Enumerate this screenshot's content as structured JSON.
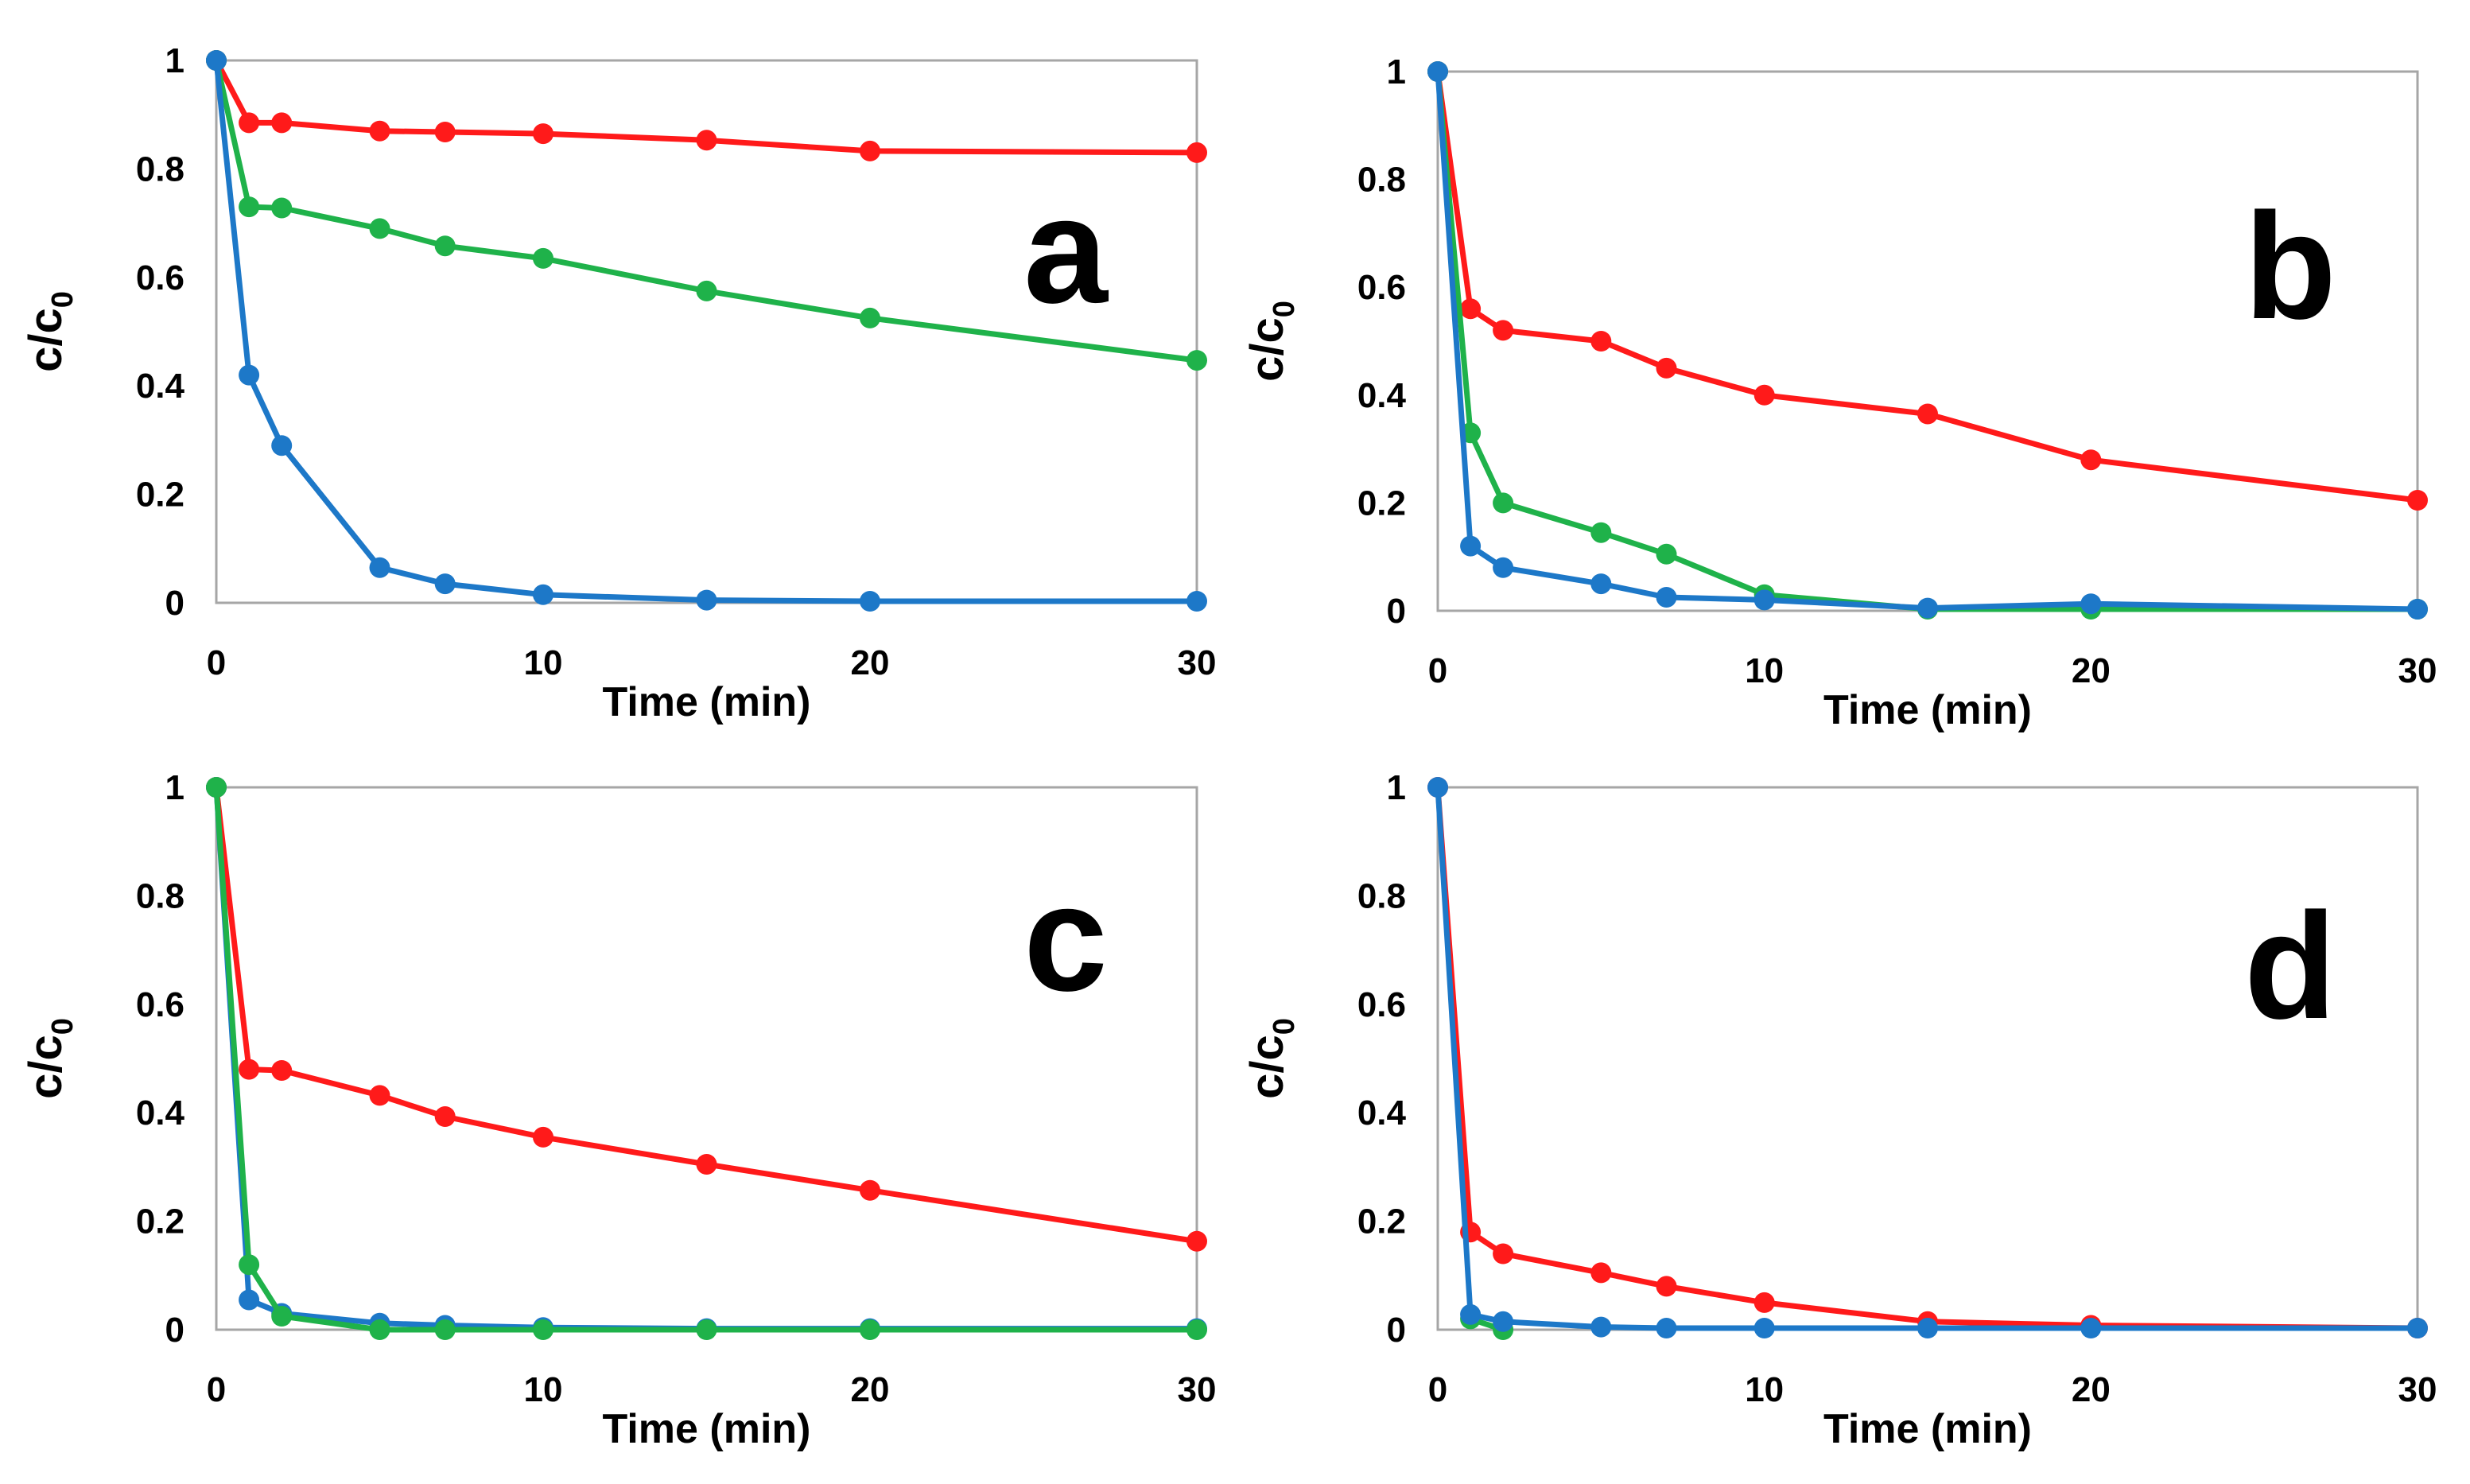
{
  "colors": {
    "red": "#ff1a1a",
    "green": "#1fb24a",
    "blue": "#1d78c8"
  },
  "chart_data": [
    {
      "type": "line",
      "panel_label": "a",
      "xlabel": "Time (min)",
      "ylabel_main": "c/c",
      "ylabel_sub": "0",
      "x": [
        0,
        1,
        2,
        5,
        7,
        10,
        15,
        20,
        30
      ],
      "xlim": [
        0,
        30
      ],
      "ylim": [
        0,
        1
      ],
      "xticks": [
        "0",
        "10",
        "20",
        "30"
      ],
      "yticks": [
        "0",
        "0.2",
        "0.4",
        "0.6",
        "0.8",
        "1"
      ],
      "grid": false,
      "series": [
        {
          "color": "red",
          "values": [
            1,
            0.885,
            0.885,
            0.87,
            0.868,
            0.865,
            0.853,
            0.833,
            0.83
          ]
        },
        {
          "color": "green",
          "values": [
            1,
            0.73,
            0.728,
            0.69,
            0.658,
            0.635,
            0.575,
            0.525,
            0.447
          ]
        },
        {
          "color": "blue",
          "values": [
            1,
            0.42,
            0.29,
            0.065,
            0.035,
            0.015,
            0.005,
            0.003,
            0.003
          ]
        }
      ]
    },
    {
      "type": "line",
      "panel_label": "b",
      "xlabel": "Time (min)",
      "ylabel_main": "c/c",
      "ylabel_sub": "0",
      "x": [
        0,
        1,
        2,
        5,
        7,
        10,
        15,
        20,
        30
      ],
      "xlim": [
        0,
        30
      ],
      "ylim": [
        0,
        1
      ],
      "xticks": [
        "0",
        "10",
        "20",
        "30"
      ],
      "yticks": [
        "0",
        "0.2",
        "0.4",
        "0.6",
        "0.8",
        "1"
      ],
      "grid": false,
      "series": [
        {
          "color": "red",
          "values": [
            1,
            0.56,
            0.52,
            0.5,
            0.45,
            0.4,
            0.365,
            0.28,
            0.205
          ]
        },
        {
          "color": "green",
          "values": [
            1,
            0.33,
            0.2,
            0.145,
            0.105,
            0.03,
            0.003,
            0.003,
            0.003
          ]
        },
        {
          "color": "blue",
          "values": [
            1,
            0.12,
            0.08,
            0.05,
            0.025,
            0.02,
            0.005,
            0.013,
            0.003
          ]
        }
      ]
    },
    {
      "type": "line",
      "panel_label": "c",
      "xlabel": "Time (min)",
      "ylabel_main": "c/c",
      "ylabel_sub": "0",
      "x": [
        0,
        1,
        2,
        5,
        7,
        10,
        15,
        20,
        30
      ],
      "xlim": [
        0,
        30
      ],
      "ylim": [
        0,
        1
      ],
      "xticks": [
        "0",
        "10",
        "20",
        "30"
      ],
      "yticks": [
        "0",
        "0.2",
        "0.4",
        "0.6",
        "0.8",
        "1"
      ],
      "grid": false,
      "series": [
        {
          "color": "red",
          "values": [
            1,
            0.48,
            0.478,
            0.432,
            0.393,
            0.355,
            0.305,
            0.257,
            0.163
          ]
        },
        {
          "color": "blue",
          "values": [
            1,
            0.055,
            0.03,
            0.012,
            0.008,
            0.004,
            0.002,
            0.002,
            0.002
          ]
        },
        {
          "color": "green",
          "values": [
            1,
            0.12,
            0.025,
            0,
            0,
            0,
            0,
            0,
            0
          ]
        }
      ]
    },
    {
      "type": "line",
      "panel_label": "d",
      "xlabel": "Time (min)",
      "ylabel_main": "c/c",
      "ylabel_sub": "0",
      "x": [
        0,
        1,
        2,
        5,
        7,
        10,
        15,
        20,
        30
      ],
      "xlim": [
        0,
        30
      ],
      "ylim": [
        0,
        1
      ],
      "xticks": [
        "0",
        "10",
        "20",
        "30"
      ],
      "yticks": [
        "0",
        "0.2",
        "0.4",
        "0.6",
        "0.8",
        "1"
      ],
      "grid": false,
      "series": [
        {
          "color": "red",
          "values": [
            1,
            0.18,
            0.14,
            0.105,
            0.08,
            0.05,
            0.015,
            0.008,
            0.003
          ]
        },
        {
          "color": "green",
          "x": [
            1,
            2
          ],
          "values": [
            0.02,
            0
          ]
        },
        {
          "color": "blue",
          "values": [
            1,
            0.028,
            0.015,
            0.005,
            0.003,
            0.003,
            0.003,
            0.003,
            0.003
          ]
        }
      ]
    }
  ]
}
